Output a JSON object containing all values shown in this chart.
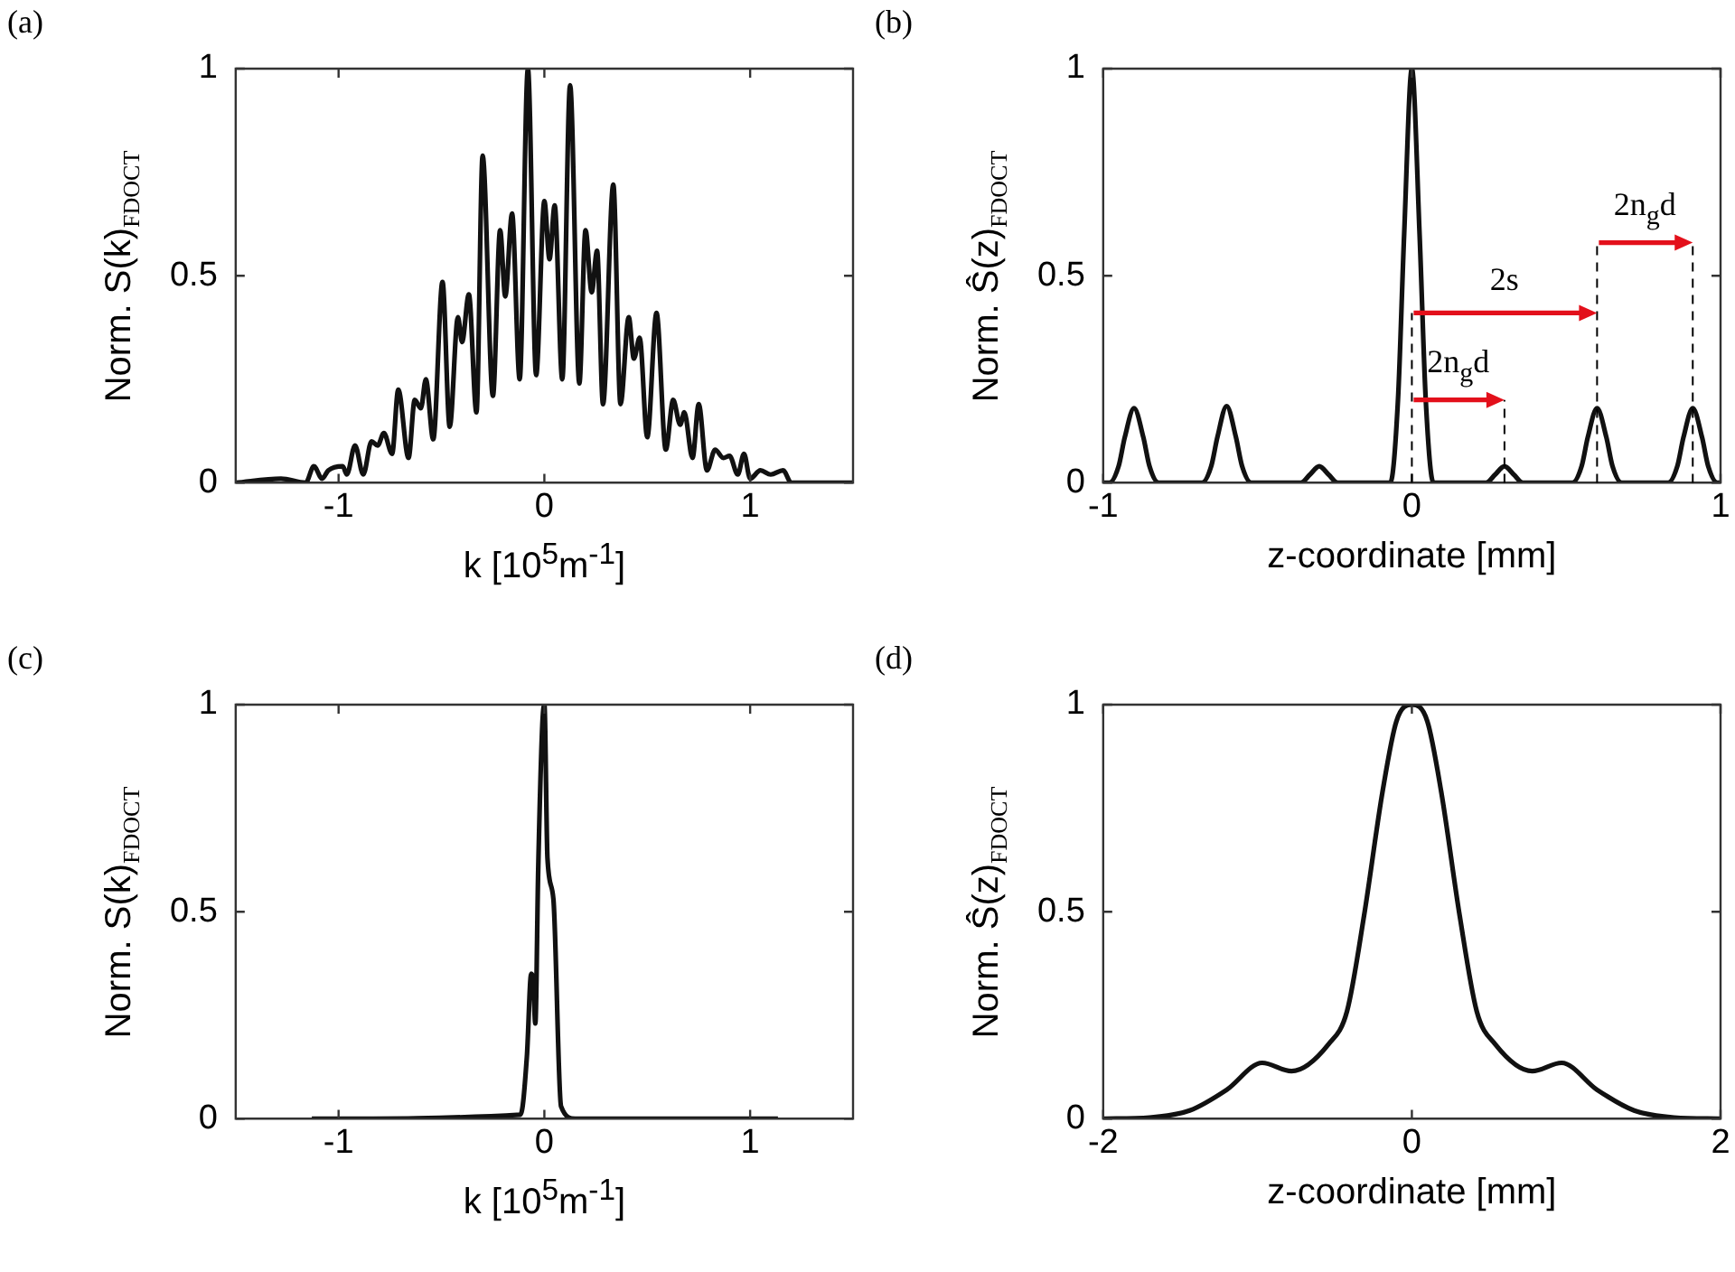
{
  "chart_data": [
    {
      "type": "line",
      "title": "(a)",
      "xlabel": "k [10$^{5}$m$^{-1}$]",
      "ylabel": "Norm. S(k)$_{FDOCT}$",
      "xlim": [
        -1.5,
        1.5
      ],
      "xticks": [
        -1,
        0,
        1
      ],
      "ylim": [
        0,
        1
      ],
      "yticks": [
        0,
        0.5,
        1
      ],
      "x": [
        -1.5,
        -1.28,
        -1.16,
        -1.12,
        -1.08,
        -1.05,
        -0.98,
        -0.96,
        -0.92,
        -0.88,
        -0.84,
        -0.81,
        -0.78,
        -0.74,
        -0.71,
        -0.66,
        -0.63,
        -0.6,
        -0.576,
        -0.54,
        -0.495,
        -0.46,
        -0.42,
        -0.4,
        -0.367,
        -0.33,
        -0.3,
        -0.25,
        -0.215,
        -0.19,
        -0.157,
        -0.12,
        -0.08,
        -0.04,
        0,
        0.025,
        0.05,
        0.087,
        0.125,
        0.17,
        0.2,
        0.23,
        0.256,
        0.285,
        0.335,
        0.37,
        0.41,
        0.435,
        0.463,
        0.5,
        0.545,
        0.59,
        0.626,
        0.66,
        0.68,
        0.72,
        0.75,
        0.79,
        0.83,
        0.87,
        0.9,
        0.94,
        0.97,
        1.0,
        1.05,
        1.1,
        1.16,
        1.2,
        1.5
      ],
      "series": [
        {
          "color": "#111111",
          "values": [
            0,
            0.01,
            0,
            0.04,
            0.01,
            0.03,
            0.04,
            0.02,
            0.09,
            0.02,
            0.1,
            0.09,
            0.12,
            0.07,
            0.225,
            0.06,
            0.2,
            0.18,
            0.25,
            0.105,
            0.485,
            0.135,
            0.4,
            0.34,
            0.455,
            0.17,
            0.79,
            0.21,
            0.61,
            0.45,
            0.65,
            0.25,
            1,
            0.26,
            0.68,
            0.54,
            0.67,
            0.25,
            0.96,
            0.24,
            0.61,
            0.46,
            0.56,
            0.19,
            0.72,
            0.19,
            0.4,
            0.3,
            0.35,
            0.11,
            0.41,
            0.08,
            0.2,
            0.14,
            0.17,
            0.06,
            0.19,
            0.03,
            0.08,
            0.06,
            0.065,
            0.02,
            0.07,
            0.01,
            0.03,
            0.02,
            0.03,
            0,
            0
          ]
        }
      ]
    },
    {
      "type": "line",
      "title": "(b)",
      "xlabel": "z-coordinate [mm]",
      "ylabel": "Norm. Ŝ(z)$_{FDOCT}$",
      "xlim": [
        -1,
        1
      ],
      "xticks": [
        -1,
        0,
        1
      ],
      "ylim": [
        0,
        1
      ],
      "yticks": [
        0,
        0.5,
        1
      ],
      "x": [
        -1,
        -0.98,
        -0.95,
        -0.93,
        -0.9,
        -0.87,
        -0.85,
        -0.82,
        -0.68,
        -0.65,
        -0.63,
        -0.6,
        -0.57,
        -0.55,
        -0.52,
        -0.36,
        -0.33,
        -0.3,
        -0.27,
        -0.24,
        -0.07,
        -0.045,
        -0.025,
        0,
        0.025,
        0.045,
        0.07,
        0.24,
        0.27,
        0.3,
        0.33,
        0.36,
        0.52,
        0.55,
        0.57,
        0.6,
        0.63,
        0.65,
        0.68,
        0.83,
        0.86,
        0.88,
        0.91,
        0.94,
        0.96,
        0.99,
        1
      ],
      "series": [
        {
          "color": "#111111",
          "values": [
            0,
            0,
            0.04,
            0.11,
            0.18,
            0.11,
            0.04,
            0,
            0,
            0.04,
            0.11,
            0.185,
            0.11,
            0.04,
            0,
            0,
            0.02,
            0.04,
            0.02,
            0,
            0,
            0.2,
            0.6,
            1,
            0.6,
            0.2,
            0,
            0,
            0.02,
            0.04,
            0.02,
            0,
            0,
            0.04,
            0.11,
            0.18,
            0.11,
            0.04,
            0,
            0,
            0.04,
            0.11,
            0.18,
            0.11,
            0.04,
            0,
            0
          ]
        }
      ],
      "ref_lines": [
        {
          "axis": "x",
          "value": 0,
          "color": "#000000",
          "line_style": "dashed"
        },
        {
          "axis": "x",
          "value": 0.3,
          "color": "#000000",
          "line_style": "dashed"
        },
        {
          "axis": "x",
          "value": 0.6,
          "color": "#000000",
          "line_style": "dashed"
        },
        {
          "axis": "x",
          "value": 0.91,
          "color": "#000000",
          "line_style": "dashed"
        }
      ],
      "annotations": [
        {
          "text": "2s",
          "x": 0.6,
          "y": 0.41
        },
        {
          "text": "2n$_{g}$d",
          "x": 0.91,
          "y": 0.58
        },
        {
          "text": "2n$_{g}$d",
          "x": 0.3,
          "y": 0.2
        }
      ]
    },
    {
      "type": "line",
      "title": "(c)",
      "xlabel": "k [10$^{5}$m$^{-1}$]",
      "ylabel": "Norm. S(k)$_{FDOCT}$",
      "xlim": [
        -1.5,
        1.5
      ],
      "xticks": [
        -1,
        0,
        1
      ],
      "ylim": [
        0,
        1
      ],
      "yticks": [
        0,
        0.5,
        1
      ],
      "x": [
        -1.13,
        -0.116,
        -0.085,
        -0.064,
        -0.055,
        -0.044,
        -0.03,
        -0.01,
        0,
        0.015,
        0.044,
        0.081,
        0.15,
        1.135
      ],
      "series": [
        {
          "color": "#111111",
          "values": [
            0,
            0.01,
            0.15,
            0.35,
            0.34,
            0.23,
            0.6,
            0.95,
            1,
            0.63,
            0.53,
            0.03,
            0,
            0
          ]
        }
      ]
    },
    {
      "type": "line",
      "title": "(d)",
      "xlabel": "z-coordinate [mm]",
      "ylabel": "Norm. Ŝ(z)$_{FDOCT}$",
      "xlim": [
        -2,
        2
      ],
      "xticks": [
        -2,
        0,
        2
      ],
      "ylim": [
        0,
        1
      ],
      "yticks": [
        0,
        0.5,
        1
      ],
      "x": [
        -2,
        -1.7,
        -1.44,
        -1.2,
        -0.97,
        -0.78,
        -0.54,
        -0.42,
        -0.31,
        -0.19,
        -0.1,
        0,
        0.1,
        0.19,
        0.31,
        0.42,
        0.54,
        0.78,
        0.97,
        1.2,
        1.44,
        1.7,
        2
      ],
      "series": [
        {
          "color": "#111111",
          "values": [
            0,
            0.003,
            0.02,
            0.07,
            0.135,
            0.115,
            0.18,
            0.26,
            0.49,
            0.79,
            0.96,
            1,
            0.96,
            0.79,
            0.49,
            0.26,
            0.18,
            0.115,
            0.135,
            0.07,
            0.02,
            0.003,
            0
          ]
        }
      ]
    }
  ]
}
